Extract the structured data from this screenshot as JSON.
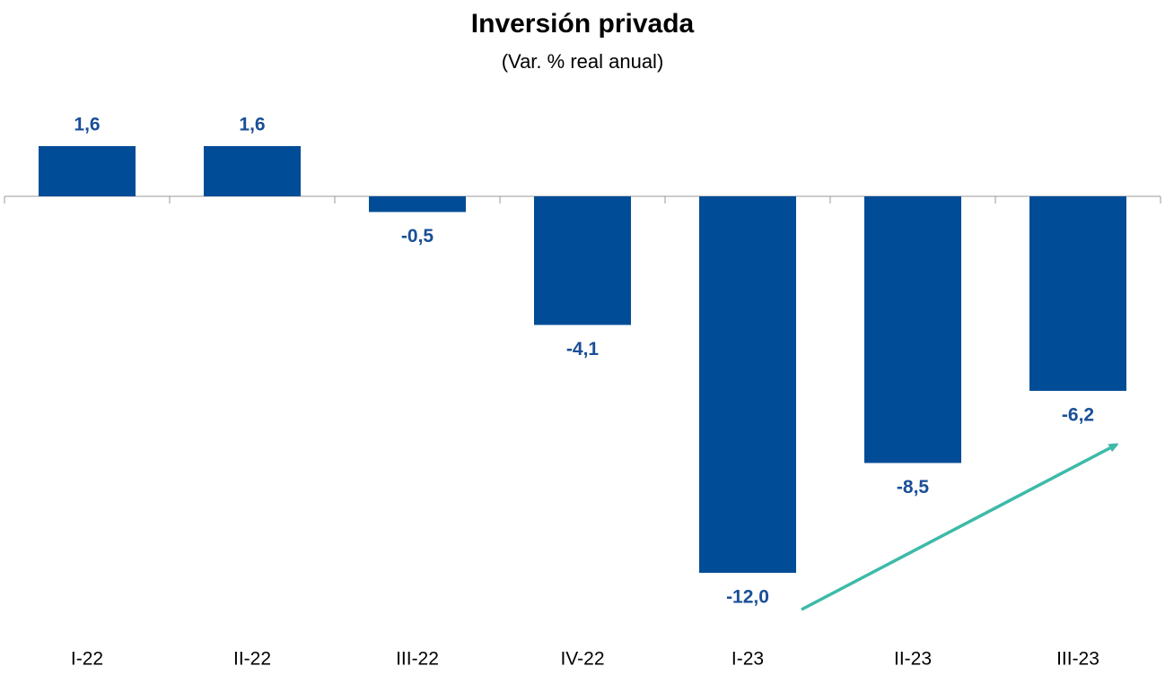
{
  "chart_data": {
    "type": "bar",
    "title": "Inversión privada",
    "subtitle": "(Var. % real anual)",
    "categories": [
      "I-22",
      "II-22",
      "III-22",
      "IV-22",
      "I-23",
      "II-23",
      "III-23"
    ],
    "values": [
      1.6,
      1.6,
      -0.5,
      -4.1,
      -12.0,
      -8.5,
      -6.2
    ],
    "value_labels": [
      "1,6",
      "1,6",
      "-0,5",
      "-4,1",
      "-12,0",
      "-8,5",
      "-6,2"
    ],
    "color": "#004c97",
    "ylim": [
      -14,
      2.5
    ]
  }
}
